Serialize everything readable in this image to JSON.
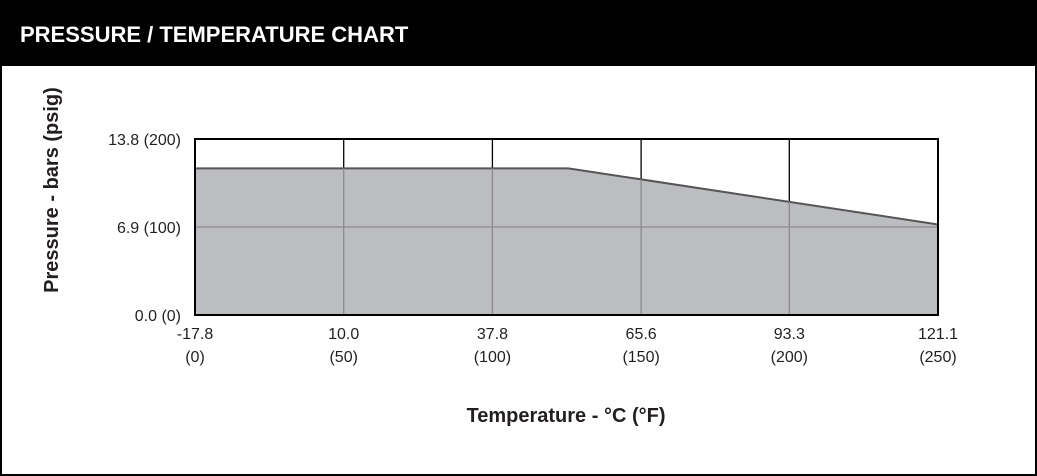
{
  "chart_data": {
    "type": "area",
    "title": "PRESSURE / TEMPERATURE CHART",
    "x_label": "Temperature - °C (°F)",
    "y_label": "Pressure - bars (psig)",
    "x": [
      -17.8,
      52,
      121.1
    ],
    "values": [
      11.5,
      11.5,
      7.1
    ],
    "color": "#bcbdc0",
    "line_color": "#555555",
    "xlim": [
      -17.8,
      121.1
    ],
    "xticks": [
      {
        "value": -17.8,
        "label": "-17.8 (0)"
      },
      {
        "value": 10,
        "label": "10.0 (50)"
      },
      {
        "value": 37.8,
        "label": "37.8 (100)"
      },
      {
        "value": 65.6,
        "label": "65.6 (150)"
      },
      {
        "value": 93.3,
        "label": "93.3 (200)"
      },
      {
        "value": 121.1,
        "label": "121.1 (250)"
      }
    ],
    "ylim": [
      0,
      13.8
    ],
    "yticks": [
      {
        "value": 0,
        "label": "0.0 (0)"
      },
      {
        "value": 6.9,
        "label": "6.9 (100)"
      },
      {
        "value": 13.8,
        "label": "13.8 (200)"
      }
    ],
    "grid": true
  }
}
